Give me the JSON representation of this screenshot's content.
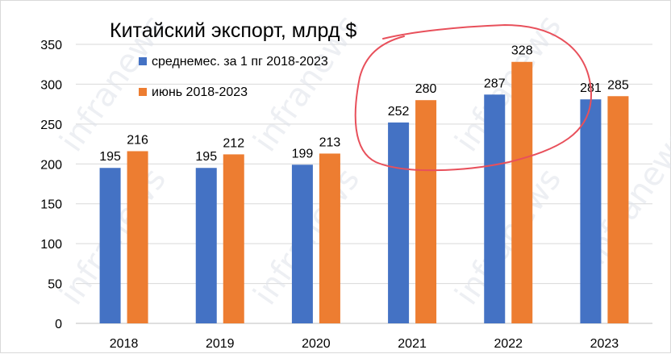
{
  "chart_data": {
    "type": "bar",
    "title": "Китайский экспорт, млрд $",
    "categories": [
      "2018",
      "2019",
      "2020",
      "2021",
      "2022",
      "2023"
    ],
    "series": [
      {
        "name": "среднемес. за 1 пг 2018-2023",
        "values": [
          195,
          195,
          199,
          252,
          287,
          281
        ],
        "color": "#4472c4"
      },
      {
        "name": "июнь 2018-2023",
        "values": [
          216,
          212,
          213,
          280,
          328,
          285
        ],
        "color": "#ed7d31"
      }
    ],
    "ylim": [
      0,
      350
    ],
    "yticks": [
      0,
      50,
      100,
      150,
      200,
      250,
      300,
      350
    ],
    "grid": true,
    "legend_position": "top-left",
    "data_labels": true,
    "annotation": {
      "type": "hand-drawn circle",
      "color": "#e8505b",
      "covers": [
        "2021",
        "2022"
      ]
    }
  },
  "watermark": {
    "text": "infranews"
  }
}
